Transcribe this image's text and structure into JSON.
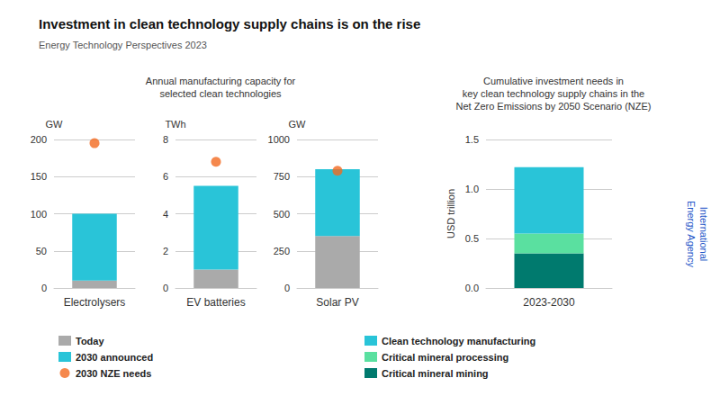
{
  "title": "Investment in clean technology supply chains is on the rise",
  "subtitle": "Energy Technology Perspectives 2023",
  "annotations": [
    {
      "text": "International\nEnergy Agency",
      "color": "#1e56c8"
    }
  ],
  "chart_data": [
    {
      "type": "bar",
      "title": "Annual manufacturing capacity for\nselected clean technologies",
      "categories": [
        "Electrolysers"
      ],
      "ylabel": "GW",
      "stacked": true,
      "grid": true,
      "legend": "lower left",
      "ylim": [
        0,
        200
      ],
      "yticks": [
        0,
        50,
        100,
        150,
        200
      ],
      "series": [
        {
          "name": "Today",
          "color": "#aaaaaa",
          "values": [
            10
          ]
        },
        {
          "name": "2030 announced",
          "color": "#29c4d8",
          "values": [
            90
          ]
        },
        {
          "name": "2030 NZE needs",
          "type": "scatter",
          "color": "#f26a21",
          "values": [
            195
          ]
        }
      ]
    },
    {
      "type": "bar",
      "categories": [
        "EV batteries"
      ],
      "ylabel": "TWh",
      "stacked": true,
      "grid": true,
      "ylim": [
        0,
        8
      ],
      "yticks": [
        0,
        2,
        4,
        6,
        8
      ],
      "series": [
        {
          "name": "Today",
          "color": "#aaaaaa",
          "values": [
            1.0
          ]
        },
        {
          "name": "2030 announced",
          "color": "#29c4d8",
          "values": [
            4.5
          ]
        },
        {
          "name": "2030 NZE needs",
          "type": "scatter",
          "color": "#f26a21",
          "values": [
            6.8
          ]
        }
      ]
    },
    {
      "type": "bar",
      "categories": [
        "Solar PV"
      ],
      "ylabel": "GW",
      "stacked": true,
      "grid": true,
      "ylim": [
        0,
        1000
      ],
      "yticks": [
        0,
        250,
        500,
        750,
        1000
      ],
      "series": [
        {
          "name": "Today",
          "color": "#aaaaaa",
          "values": [
            350
          ]
        },
        {
          "name": "2030 announced",
          "color": "#29c4d8",
          "values": [
            450
          ]
        },
        {
          "name": "2030 NZE needs",
          "type": "scatter",
          "color": "#f26a21",
          "values": [
            790
          ]
        }
      ]
    },
    {
      "type": "bar",
      "title": "Cumulative investment needs in\nkey clean technology supply chains in the\nNet Zero Emissions by 2050 Scenario (NZE)",
      "categories": [
        "2023-2030"
      ],
      "ylabel": "USD trillion",
      "stacked": true,
      "grid": true,
      "legend": "lower right",
      "ylim": [
        0,
        1.5
      ],
      "yticks": [
        {
          "value": 0,
          "label": "0.0"
        },
        0.5,
        {
          "value": 1,
          "label": "1.0"
        },
        1.5
      ],
      "series": [
        {
          "name": "Critical mineral mining",
          "color": "#007a6e",
          "values": [
            0.35
          ]
        },
        {
          "name": "Critical mineral processing",
          "color": "#5ae0a0",
          "values": [
            0.2
          ]
        },
        {
          "name": "Clean technology manufacturing",
          "color": "#29c4d8",
          "values": [
            0.67
          ]
        }
      ]
    }
  ]
}
